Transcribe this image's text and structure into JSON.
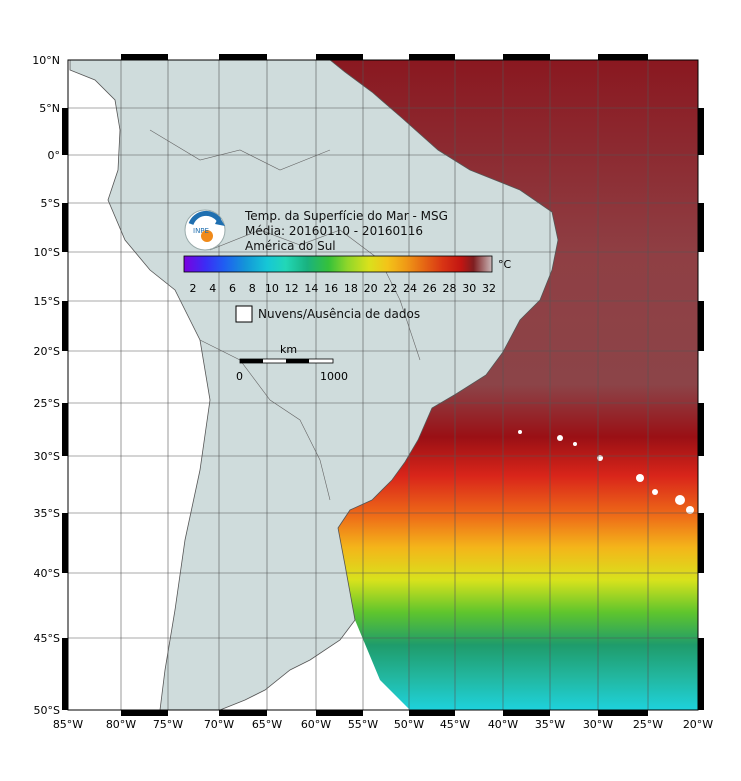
{
  "title": {
    "line1": "Temp. da Superfície do Mar - MSG",
    "line2": "Média: 20160110 - 20160116",
    "line3": "América do Sul"
  },
  "logo": {
    "text": "INPE",
    "icon": "inpe-logo-icon"
  },
  "colorbar": {
    "unit": "°C",
    "ticks": [
      "2",
      "4",
      "6",
      "8",
      "10",
      "12",
      "14",
      "16",
      "18",
      "20",
      "22",
      "24",
      "26",
      "28",
      "30",
      "32"
    ],
    "colors": [
      "#7a00e0",
      "#3b2df5",
      "#1f5ef2",
      "#1496d8",
      "#16c7d6",
      "#22d7b7",
      "#19b27f",
      "#22a05a",
      "#36c13a",
      "#8fd62a",
      "#d9e11c",
      "#f3c419",
      "#f09a16",
      "#e56614",
      "#d83414",
      "#c21512",
      "#9b0c10",
      "#7e1e20",
      "#8f4a4e",
      "#b27a7e",
      "#c9b7b8"
    ]
  },
  "legend": {
    "label": "Nuvens/Ausência de dados"
  },
  "scalebar": {
    "unit": "km",
    "start": "0",
    "end": "1000"
  },
  "axes": {
    "lat_labels": [
      "10°N",
      "5°N",
      "0°",
      "5°S",
      "10°S",
      "15°S",
      "20°S",
      "25°S",
      "30°S",
      "35°S",
      "40°S",
      "45°S",
      "50°S"
    ],
    "lon_labels": [
      "85°W",
      "80°W",
      "75°W",
      "70°W",
      "65°W",
      "60°W",
      "55°W",
      "50°W",
      "45°W",
      "40°W",
      "35°W",
      "30°W",
      "25°W",
      "20°W"
    ]
  },
  "colors": {
    "land": "#cfdcdc",
    "ocean_north": "#8a1d22",
    "ocean_south_warm": "#e6361a",
    "ocean_south_cool": "#1bc7d6",
    "frame": "#000000"
  }
}
